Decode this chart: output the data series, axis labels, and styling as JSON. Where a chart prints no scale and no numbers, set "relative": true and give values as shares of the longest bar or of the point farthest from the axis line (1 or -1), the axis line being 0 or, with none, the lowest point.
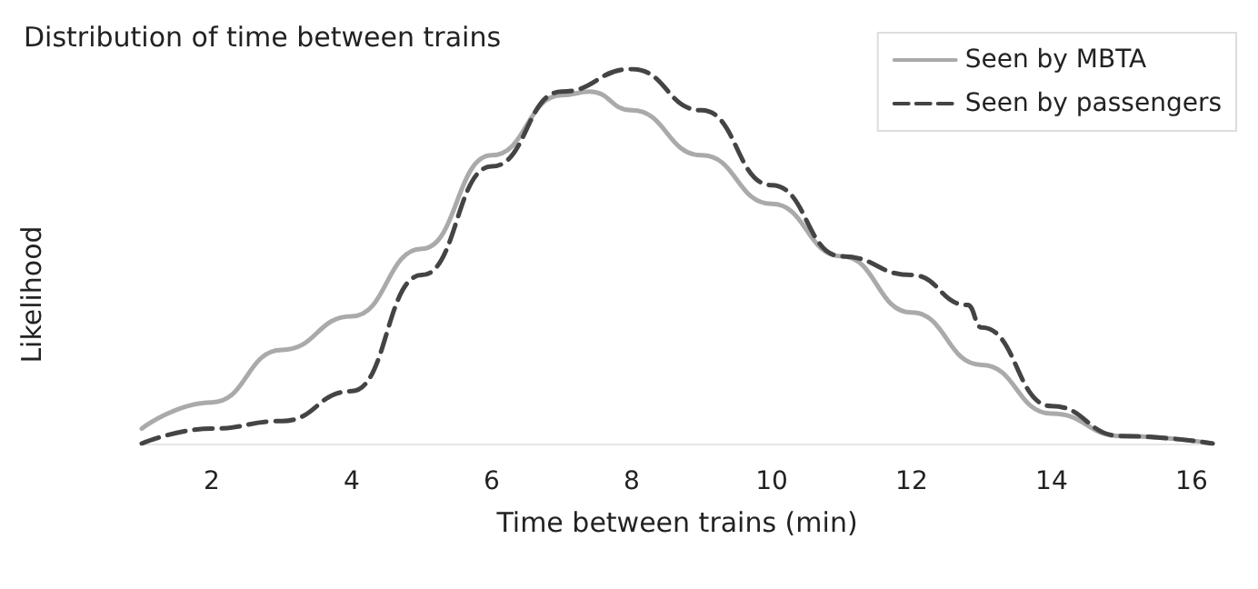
{
  "chart_data": {
    "type": "line",
    "title": "Distribution of time between trains",
    "xlabel": "Time between trains (min)",
    "ylabel": "Likelihood",
    "relative": true,
    "xlim": [
      1,
      16.3
    ],
    "xticks": [
      2,
      4,
      6,
      8,
      10,
      12,
      14,
      16
    ],
    "grid": false,
    "legend": "top right",
    "series": [
      {
        "name": "Seen by MBTA",
        "color": "#aaaaaa",
        "line_style": "solid",
        "x": [
          1,
          2,
          3,
          4,
          5,
          6,
          7,
          7.4,
          8,
          9,
          10,
          11,
          12,
          13,
          14,
          15,
          16.3
        ],
        "values": [
          0.04,
          0.11,
          0.25,
          0.34,
          0.52,
          0.77,
          0.93,
          0.94,
          0.89,
          0.77,
          0.64,
          0.5,
          0.35,
          0.21,
          0.08,
          0.02,
          0
        ]
      },
      {
        "name": "Seen by passengers",
        "color": "#444444",
        "line_style": "dashed",
        "x": [
          1,
          2,
          3,
          4,
          5,
          6,
          7,
          8,
          9,
          10,
          11,
          12,
          12.8,
          13,
          14,
          15,
          16.3
        ],
        "values": [
          0,
          0.04,
          0.06,
          0.14,
          0.45,
          0.74,
          0.94,
          1,
          0.89,
          0.69,
          0.5,
          0.45,
          0.37,
          0.31,
          0.1,
          0.02,
          0
        ]
      }
    ]
  }
}
